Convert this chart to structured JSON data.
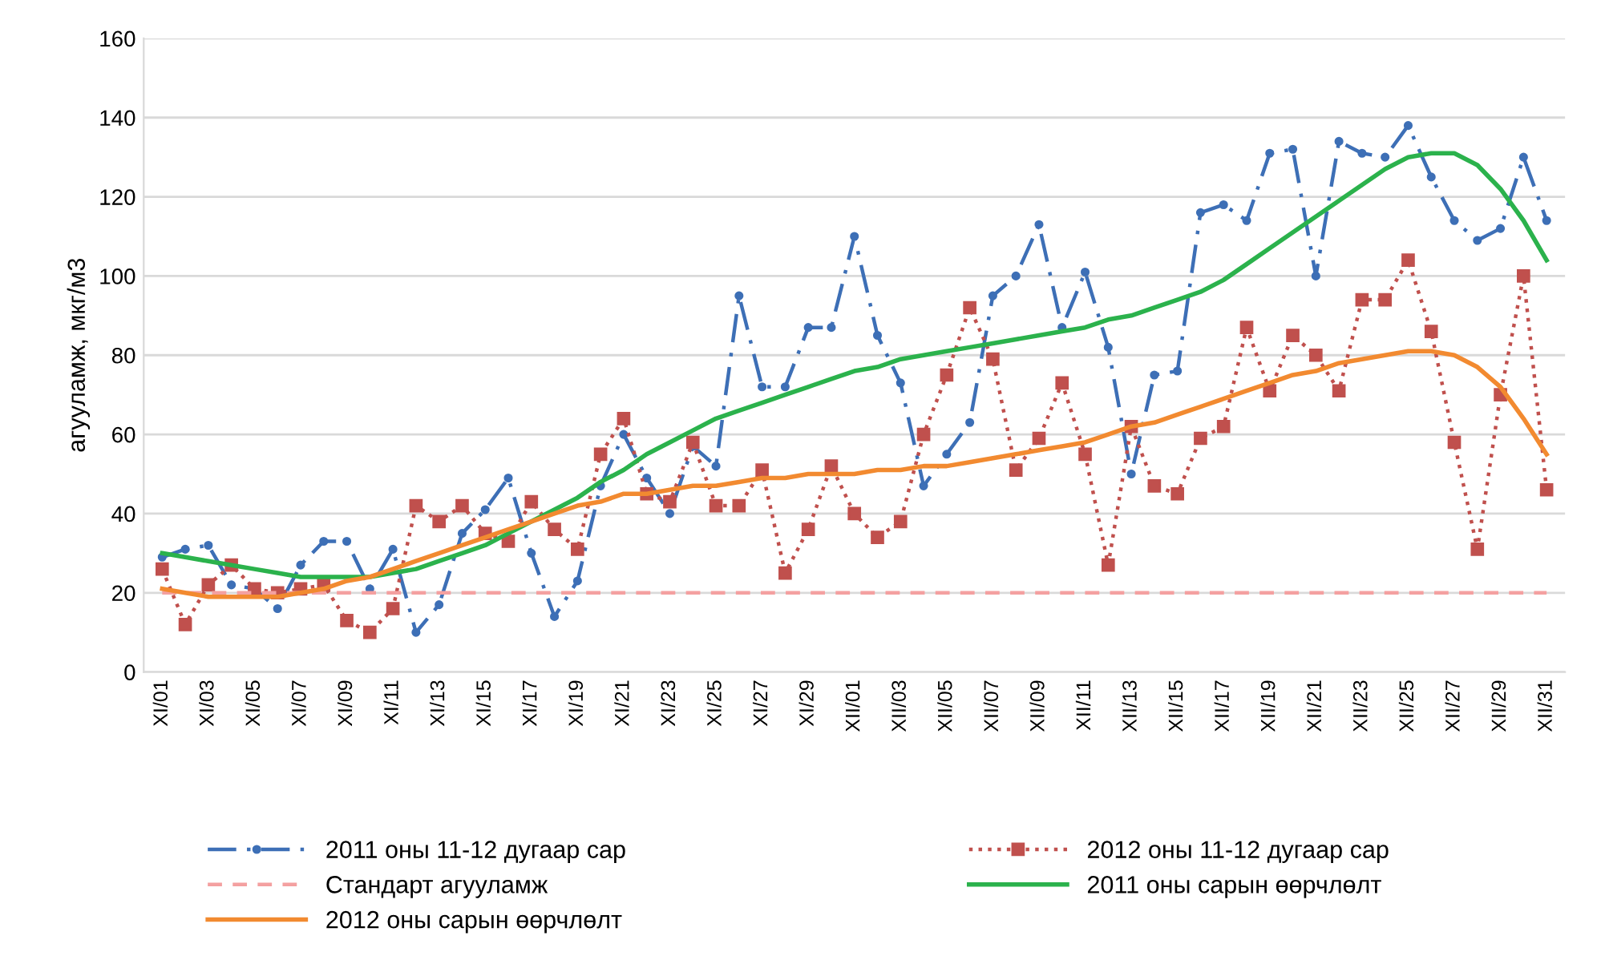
{
  "chart_data": {
    "type": "line",
    "ylabel": "агууламж, мкг/м3",
    "categories": [
      "XI/01",
      null,
      "XI/03",
      null,
      "XI/05",
      null,
      "XI/07",
      null,
      "XI/09",
      null,
      "XI/11",
      null,
      "XI/13",
      null,
      "XI/15",
      null,
      "XI/17",
      null,
      "XI/19",
      null,
      "XI/21",
      null,
      "XI/23",
      null,
      "XI/25",
      null,
      "XI/27",
      null,
      "XI/29",
      null,
      "XII/01",
      null,
      "XII/03",
      null,
      "XII/05",
      null,
      "XII/07",
      null,
      "XII/09",
      null,
      "XII/11",
      null,
      "XII/13",
      null,
      "XII/15",
      null,
      "XII/17",
      null,
      "XII/19",
      null,
      "XII/21",
      null,
      "XII/23",
      null,
      "XII/25",
      null,
      "XII/27",
      null,
      "XII/29",
      null,
      "XII/31"
    ],
    "series": [
      {
        "name": "2011 оны 11-12 дугаар сар",
        "color": "#3d6fb6",
        "marker": "circle",
        "line_style": "dashdot",
        "values": [
          29,
          31,
          32,
          22,
          21,
          16,
          27,
          33,
          33,
          21,
          31,
          10,
          17,
          35,
          41,
          49,
          30,
          14,
          23,
          47,
          60,
          49,
          40,
          57,
          52,
          95,
          72,
          72,
          87,
          87,
          110,
          85,
          73,
          47,
          55,
          63,
          95,
          100,
          113,
          87,
          101,
          82,
          50,
          75,
          76,
          116,
          118,
          114,
          131,
          132,
          100,
          134,
          131,
          130,
          138,
          125,
          114,
          109,
          112,
          130,
          114
        ]
      },
      {
        "name": "2012 оны 11-12 дугаар сар",
        "color": "#c0504d",
        "marker": "square",
        "line_style": "dotted",
        "values": [
          26,
          12,
          22,
          27,
          21,
          20,
          21,
          22,
          13,
          10,
          16,
          42,
          38,
          42,
          35,
          33,
          43,
          36,
          31,
          55,
          64,
          45,
          43,
          58,
          42,
          42,
          51,
          25,
          36,
          52,
          40,
          34,
          38,
          60,
          75,
          92,
          79,
          51,
          59,
          73,
          55,
          27,
          62,
          47,
          45,
          59,
          62,
          87,
          71,
          85,
          80,
          71,
          94,
          94,
          104,
          86,
          58,
          31,
          70,
          100,
          46
        ]
      },
      {
        "name": "Стандарт агууламж",
        "color": "#f4a0a0",
        "marker": "none",
        "line_style": "dashed",
        "values": [
          20,
          20,
          20,
          20,
          20,
          20,
          20,
          20,
          20,
          20,
          20,
          20,
          20,
          20,
          20,
          20,
          20,
          20,
          20,
          20,
          20,
          20,
          20,
          20,
          20,
          20,
          20,
          20,
          20,
          20,
          20,
          20,
          20,
          20,
          20,
          20,
          20,
          20,
          20,
          20,
          20,
          20,
          20,
          20,
          20,
          20,
          20,
          20,
          20,
          20,
          20,
          20,
          20,
          20,
          20,
          20,
          20,
          20,
          20,
          20,
          20
        ]
      },
      {
        "name": "2011 оны сарын өөрчлөлт",
        "color": "#2bb24c",
        "marker": "none",
        "line_style": "solid",
        "values": [
          30,
          29,
          28,
          27,
          26,
          25,
          24,
          24,
          24,
          24,
          25,
          26,
          28,
          30,
          32,
          35,
          38,
          41,
          44,
          48,
          51,
          55,
          58,
          61,
          64,
          66,
          68,
          70,
          72,
          74,
          76,
          77,
          79,
          80,
          81,
          82,
          83,
          84,
          85,
          86,
          87,
          89,
          90,
          92,
          94,
          96,
          99,
          103,
          107,
          111,
          115,
          119,
          123,
          127,
          130,
          131,
          131,
          128,
          122,
          114,
          104
        ]
      },
      {
        "name": "2012 оны сарын өөрчлөлт",
        "color": "#f28a30",
        "marker": "none",
        "line_style": "solid",
        "values": [
          21,
          20,
          19,
          19,
          19,
          19,
          20,
          21,
          23,
          24,
          26,
          28,
          30,
          32,
          34,
          36,
          38,
          40,
          42,
          43,
          45,
          45,
          46,
          47,
          47,
          48,
          49,
          49,
          50,
          50,
          50,
          51,
          51,
          52,
          52,
          53,
          54,
          55,
          56,
          57,
          58,
          60,
          62,
          63,
          65,
          67,
          69,
          71,
          73,
          75,
          76,
          78,
          79,
          80,
          81,
          81,
          80,
          77,
          72,
          64,
          55
        ]
      }
    ],
    "ylim": [
      0,
      160
    ],
    "yticks": [
      0,
      20,
      40,
      60,
      80,
      100,
      120,
      140,
      160
    ],
    "grid": "y",
    "legend": "bottom"
  }
}
